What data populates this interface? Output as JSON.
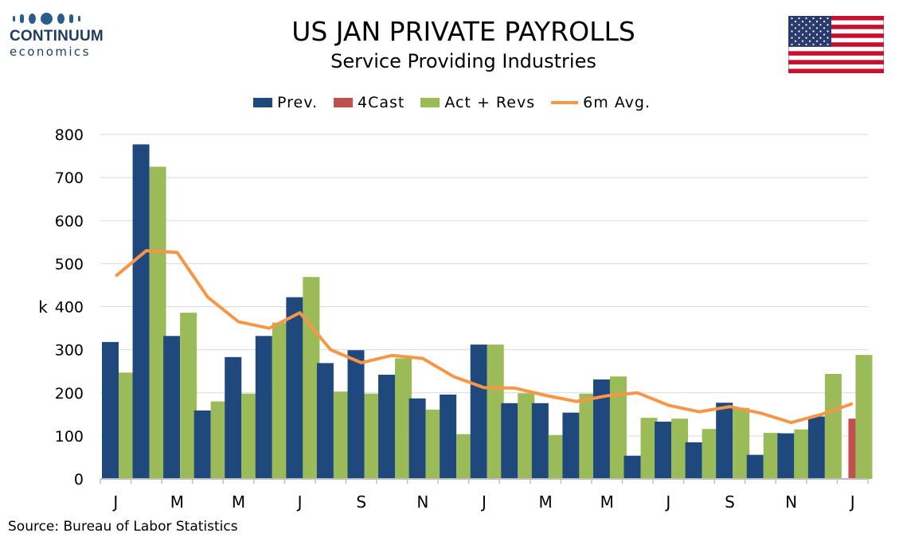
{
  "header": {
    "title": "US JAN PRIVATE PAYROLLS",
    "subtitle": "Service Providing Industries"
  },
  "logo": {
    "word": "CONTINUUM",
    "sub": "economics"
  },
  "flag_icon": "us-flag-icon",
  "source": "Source: Bureau of Labor Statistics",
  "colors": {
    "prev": "#1f497d",
    "forecast": "#c0504d",
    "actual": "#9bbb59",
    "avg": "#f79646"
  },
  "chart_data": {
    "type": "bar",
    "title": "US JAN PRIVATE PAYROLLS",
    "subtitle": "Service Providing Industries",
    "ylabel": "k",
    "ylim": [
      0,
      800
    ],
    "yticks": [
      0,
      100,
      200,
      300,
      400,
      500,
      600,
      700,
      800
    ],
    "grid": true,
    "legend_position": "top-center",
    "xtick_labels": [
      "J",
      "M",
      "M",
      "J",
      "S",
      "N",
      "J",
      "M",
      "M",
      "J",
      "S",
      "N",
      "J"
    ],
    "series": [
      {
        "name": "Prev.",
        "type": "bar",
        "values": [
          318,
          777,
          332,
          159,
          283,
          332,
          422,
          269,
          299,
          242,
          187,
          196,
          312,
          176,
          176,
          154,
          231,
          54,
          133,
          85,
          177,
          56,
          106,
          145,
          null
        ]
      },
      {
        "name": "4Cast",
        "type": "bar",
        "values": [
          null,
          null,
          null,
          null,
          null,
          null,
          null,
          null,
          null,
          null,
          null,
          null,
          null,
          null,
          null,
          null,
          null,
          null,
          null,
          null,
          null,
          null,
          null,
          null,
          140
        ]
      },
      {
        "name": "Act + Revs",
        "type": "bar",
        "values": [
          247,
          725,
          386,
          180,
          198,
          363,
          469,
          203,
          198,
          280,
          161,
          104,
          312,
          199,
          102,
          198,
          238,
          142,
          140,
          116,
          165,
          107,
          115,
          244,
          288
        ]
      },
      {
        "name": "6m Avg.",
        "type": "line",
        "values": [
          471,
          530,
          526,
          422,
          365,
          350,
          386,
          300,
          270,
          287,
          280,
          238,
          212,
          211,
          194,
          180,
          193,
          200,
          171,
          156,
          168,
          153,
          131,
          150,
          175
        ]
      }
    ]
  }
}
